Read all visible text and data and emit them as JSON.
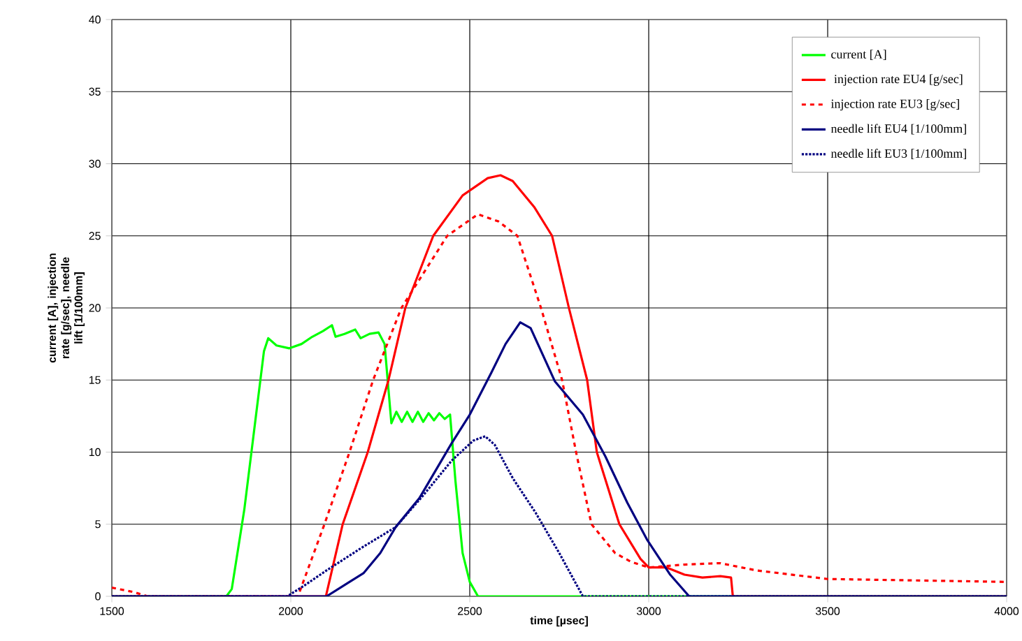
{
  "chart_data": {
    "type": "line",
    "xlabel": "time [µsec]",
    "ylabel": "current [A], injection rate [g/sec], needle lift [1/100mm]",
    "xlim": [
      1500,
      4000
    ],
    "xticks": [
      1500,
      2000,
      2500,
      3000,
      3500,
      4000
    ],
    "ylim": [
      0,
      40
    ],
    "yticks": [
      0,
      5,
      10,
      15,
      20,
      25,
      30,
      35,
      40
    ],
    "grid": true,
    "legend": "top right",
    "marker": "none",
    "series": [
      {
        "name": "current [A]",
        "color": "#00ff00",
        "line_style": "solid",
        "x": [
          1500,
          1820,
          1835,
          1870,
          1900,
          1925,
          1937,
          1960,
          1996,
          2030,
          2060,
          2090,
          2115,
          2125,
          2150,
          2180,
          2195,
          2220,
          2245,
          2262,
          2281,
          2295,
          2310,
          2325,
          2340,
          2355,
          2370,
          2385,
          2400,
          2415,
          2430,
          2445,
          2460,
          2480,
          2500,
          2523,
          4000
        ],
        "values": [
          0,
          0,
          0.5,
          6,
          12,
          17,
          17.9,
          17.4,
          17.2,
          17.5,
          18,
          18.4,
          18.8,
          18,
          18.2,
          18.5,
          17.9,
          18.2,
          18.3,
          17.5,
          12,
          12.8,
          12.1,
          12.8,
          12.1,
          12.8,
          12.1,
          12.7,
          12.2,
          12.7,
          12.3,
          12.6,
          8,
          3,
          1,
          0,
          0
        ]
      },
      {
        "name": " injection rate EU4 [g/sec]",
        "color": "#ff0000",
        "line_style": "solid",
        "x": [
          1500,
          2098,
          2145,
          2215,
          2273,
          2320,
          2398,
          2480,
          2550,
          2586,
          2620,
          2680,
          2730,
          2777,
          2828,
          2855,
          2918,
          2977,
          3000,
          3050,
          3100,
          3150,
          3200,
          3230,
          3235,
          4000
        ],
        "values": [
          0,
          0,
          5,
          10,
          15,
          20,
          25,
          27.8,
          29,
          29.2,
          28.8,
          27,
          25,
          20,
          15,
          10,
          5,
          2.6,
          2.0,
          2.0,
          1.5,
          1.3,
          1.4,
          1.3,
          0,
          0
        ]
      },
      {
        "name": "injection rate EU3 [g/sec]",
        "color": "#ff0000",
        "line_style": "dashed",
        "x": [
          1500,
          1560,
          1600,
          2020,
          2094,
          2164,
          2230,
          2309,
          2437,
          2523,
          2580,
          2633,
          2699,
          2758,
          2797,
          2840,
          2906,
          2950,
          3000,
          3100,
          3200,
          3300,
          3400,
          3500,
          4000
        ],
        "values": [
          0.6,
          0.3,
          0,
          0,
          5,
          10,
          15,
          20,
          25,
          26.5,
          26,
          25,
          20,
          15,
          10,
          5,
          3,
          2.4,
          2.0,
          2.2,
          2.3,
          1.8,
          1.5,
          1.2,
          1.0
        ]
      },
      {
        "name": "needle lift EU4 [1/100mm]",
        "color": "#000080",
        "line_style": "solid",
        "x": [
          1500,
          2100,
          2164,
          2203,
          2250,
          2293,
          2359,
          2449,
          2500,
          2560,
          2600,
          2641,
          2670,
          2738,
          2816,
          2879,
          2940,
          2996,
          3060,
          3113,
          4000
        ],
        "values": [
          0,
          0,
          1.0,
          1.6,
          3,
          4.8,
          6.8,
          10.6,
          12.6,
          15.5,
          17.5,
          19.0,
          18.6,
          14.9,
          12.6,
          9.7,
          6.5,
          3.9,
          1.5,
          0,
          0
        ]
      },
      {
        "name": "needle lift EU3 [1/100mm]",
        "color": "#000080",
        "line_style": "dotted",
        "x": [
          1500,
          1990,
          2035,
          2100,
          2200,
          2293,
          2370,
          2449,
          2510,
          2543,
          2570,
          2620,
          2684,
          2750,
          2816,
          4000
        ],
        "values": [
          0,
          0,
          0.7,
          1.8,
          3.4,
          4.8,
          7,
          9.4,
          10.8,
          11.1,
          10.5,
          8.2,
          5.8,
          3,
          0,
          0
        ]
      }
    ]
  }
}
